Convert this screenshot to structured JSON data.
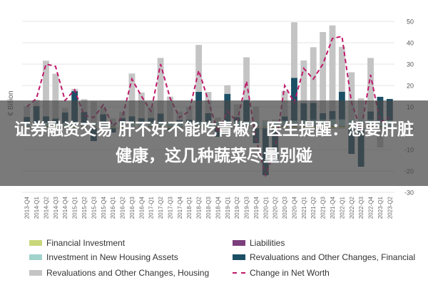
{
  "chart_data": {
    "type": "bar",
    "ylabel": "€ Billion",
    "ylim": [
      -30,
      50
    ],
    "yticks": [
      50,
      40,
      30,
      20,
      10,
      0,
      -10,
      -20,
      -30
    ],
    "grid": true,
    "legend_position": "bottom",
    "categories": [
      "2013-Q4",
      "2014-Q1",
      "2014-Q2",
      "2014-Q3",
      "2014-Q4",
      "2015-Q1",
      "2015-Q2",
      "2015-Q3",
      "2015-Q4",
      "2016-Q1",
      "2016-Q2",
      "2016-Q3",
      "2016-Q4",
      "2017-Q1",
      "2017-Q2",
      "2017-Q3",
      "2017-Q4",
      "2018-Q1",
      "2018-Q2",
      "2018-Q3",
      "2018-Q4",
      "2019-Q1",
      "2019-Q2",
      "2019-Q3",
      "2019-Q4",
      "2020-Q1",
      "2020-Q2",
      "2020-Q3",
      "2020-Q4",
      "2021-Q1",
      "2021-Q2",
      "2021-Q3",
      "2021-Q4",
      "2022-Q1",
      "2022-Q2",
      "2022-Q3",
      "2022-Q4",
      "2023-Q1",
      "2023-Q2"
    ],
    "series": [
      {
        "name": "Financial Investment",
        "kind": "bar",
        "color": "#c9d77a",
        "values": [
          0.5,
          0.6,
          0.7,
          0.6,
          0.5,
          0.5,
          0.6,
          0.5,
          0.5,
          0.5,
          0.6,
          0.5,
          0.5,
          0.6,
          0.6,
          0.5,
          0.5,
          0.6,
          0.6,
          0.5,
          0.5,
          0.6,
          0.6,
          0.6,
          0.6,
          0.5,
          0.6,
          0.7,
          0.7,
          0.7,
          0.8,
          0.8,
          0.8,
          0.8,
          0.8,
          0.7,
          0.7,
          0.6,
          0.6
        ]
      },
      {
        "name": "Liabilities",
        "kind": "bar",
        "color": "#7b3f7b",
        "values": [
          0.3,
          0.3,
          0.3,
          0.3,
          0.3,
          0.3,
          0.3,
          0.3,
          0.3,
          0.3,
          0.3,
          0.3,
          0.3,
          0.3,
          0.3,
          0.3,
          0.3,
          0.3,
          0.3,
          0.3,
          0.3,
          0.3,
          0.3,
          0.3,
          0.3,
          0.3,
          0.3,
          0.3,
          0.3,
          0.3,
          0.3,
          0.3,
          0.3,
          0.3,
          0.3,
          0.3,
          0.3,
          0.3,
          0.3
        ]
      },
      {
        "name": "Investment in New Housing Assets",
        "kind": "bar",
        "color": "#9fd3cc",
        "values": [
          1.5,
          1.5,
          1.6,
          1.6,
          1.6,
          1.6,
          1.7,
          1.7,
          1.7,
          1.8,
          1.8,
          1.8,
          1.9,
          1.9,
          2.0,
          2.0,
          2.0,
          2.1,
          2.1,
          2.2,
          2.2,
          2.2,
          2.3,
          2.3,
          2.3,
          2.0,
          2.2,
          2.5,
          2.6,
          2.7,
          2.8,
          2.9,
          3.0,
          3.0,
          3.1,
          3.0,
          2.9,
          2.8,
          2.8
        ]
      },
      {
        "name": "Revaluations and Other Changes, Financial",
        "kind": "bar",
        "color": "#1b4f66",
        "values": [
          3,
          8,
          3,
          2,
          5,
          15,
          5,
          -6,
          4,
          -2,
          2,
          3,
          2,
          2,
          4,
          -1,
          1,
          1,
          14,
          4,
          -4,
          13,
          2,
          10,
          -7,
          -22,
          -16,
          2,
          20,
          8,
          8,
          3,
          4,
          13,
          -12,
          -18,
          4,
          11,
          10
        ]
      },
      {
        "name": "Revaluations and Other Changes, Housing",
        "kind": "bar",
        "color": "#c4c4c4",
        "values": [
          5,
          3,
          26,
          21,
          2,
          1,
          6,
          10,
          3,
          2,
          3,
          20,
          12,
          5,
          26,
          12,
          4,
          6,
          22,
          10,
          2,
          4,
          6,
          20,
          7,
          1,
          1,
          12,
          26,
          20,
          26,
          38,
          40,
          21,
          22,
          10,
          25,
          -9,
          -1
        ]
      },
      {
        "name": "Change in Net Worth",
        "kind": "line",
        "color": "#c0186a",
        "values": [
          10,
          14,
          30,
          29,
          13,
          18,
          6,
          5,
          11,
          1,
          5,
          23,
          15,
          8,
          30,
          14,
          5,
          8,
          27,
          13,
          -2,
          8,
          3,
          22,
          -5,
          -22,
          -10,
          20,
          12,
          28,
          23,
          30,
          42,
          43,
          12,
          -1,
          25,
          3,
          5
        ]
      }
    ]
  },
  "overlay": {
    "headline": "证券融资交易 肝不好不能吃青椒？医生提醒：想要肝脏健康，这几种蔬菜尽量别碰"
  }
}
